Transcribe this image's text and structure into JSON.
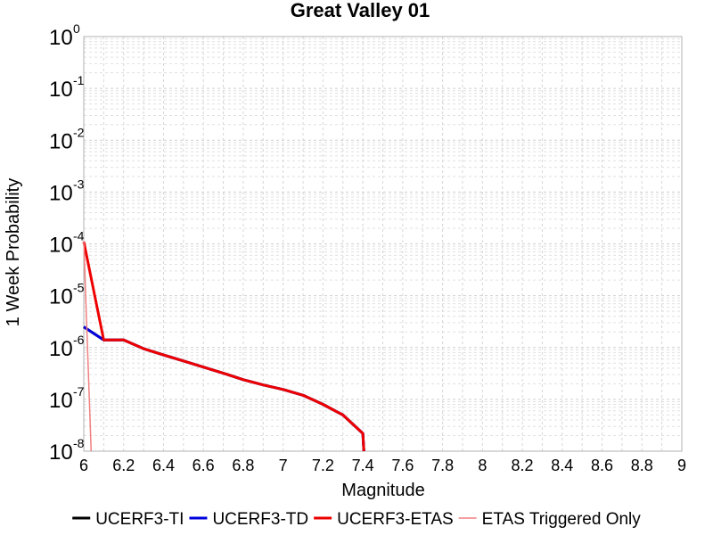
{
  "chart_data": {
    "type": "line",
    "title": "Great Valley 01",
    "xlabel": "Magnitude",
    "ylabel": "1 Week Probability",
    "xlim": [
      6,
      9
    ],
    "ylim": [
      1e-08,
      1
    ],
    "yscale": "log",
    "grid": true,
    "legend_position": "bottom",
    "x_ticks": [
      "6",
      "6.2",
      "6.4",
      "6.6",
      "6.8",
      "7",
      "7.2",
      "7.4",
      "7.6",
      "7.8",
      "8",
      "8.2",
      "8.4",
      "8.6",
      "8.8",
      "9"
    ],
    "y_ticks": [
      {
        "base": "10",
        "exp": "-8"
      },
      {
        "base": "10",
        "exp": "-7"
      },
      {
        "base": "10",
        "exp": "-6"
      },
      {
        "base": "10",
        "exp": "-5"
      },
      {
        "base": "10",
        "exp": "-4"
      },
      {
        "base": "10",
        "exp": "-3"
      },
      {
        "base": "10",
        "exp": "-2"
      },
      {
        "base": "10",
        "exp": "-1"
      },
      {
        "base": "10",
        "exp": "0"
      }
    ],
    "series": [
      {
        "name": "UCERF3-TI",
        "color": "#000000",
        "width": 3,
        "x": [
          6.0,
          6.1,
          6.2,
          6.3,
          6.4,
          6.5,
          6.6,
          6.7,
          6.8,
          6.9,
          7.0,
          7.1,
          7.2,
          7.3,
          7.4,
          7.405
        ],
        "y": [
          2.5e-06,
          1.4e-06,
          1.4e-06,
          9.5e-07,
          7.2e-07,
          5.5e-07,
          4.2e-07,
          3.2e-07,
          2.4e-07,
          1.9e-07,
          1.55e-07,
          1.2e-07,
          8e-08,
          5e-08,
          2.2e-08,
          1e-08
        ]
      },
      {
        "name": "UCERF3-TD",
        "color": "#0000dd",
        "width": 3,
        "x": [
          6.0,
          6.1,
          6.2,
          6.3,
          6.4,
          6.5,
          6.6,
          6.7,
          6.8,
          6.9,
          7.0,
          7.1,
          7.2,
          7.3,
          7.4,
          7.405
        ],
        "y": [
          2.5e-06,
          1.4e-06,
          1.4e-06,
          9.5e-07,
          7.2e-07,
          5.5e-07,
          4.2e-07,
          3.2e-07,
          2.4e-07,
          1.9e-07,
          1.55e-07,
          1.2e-07,
          8e-08,
          5e-08,
          2.2e-08,
          1e-08
        ]
      },
      {
        "name": "UCERF3-ETAS",
        "color": "#ee0000",
        "width": 3,
        "x": [
          6.0,
          6.1,
          6.2,
          6.3,
          6.4,
          6.5,
          6.6,
          6.7,
          6.8,
          6.9,
          7.0,
          7.1,
          7.2,
          7.3,
          7.4,
          7.405
        ],
        "y": [
          0.00011,
          1.4e-06,
          1.4e-06,
          9.5e-07,
          7.2e-07,
          5.5e-07,
          4.2e-07,
          3.2e-07,
          2.4e-07,
          1.9e-07,
          1.55e-07,
          1.2e-07,
          8e-08,
          5e-08,
          2.2e-08,
          1e-08
        ]
      },
      {
        "name": "ETAS Triggered Only",
        "color": "#f08080",
        "width": 1.5,
        "x": [
          6.0,
          6.037
        ],
        "y": [
          0.00011,
          1e-08
        ]
      }
    ]
  }
}
